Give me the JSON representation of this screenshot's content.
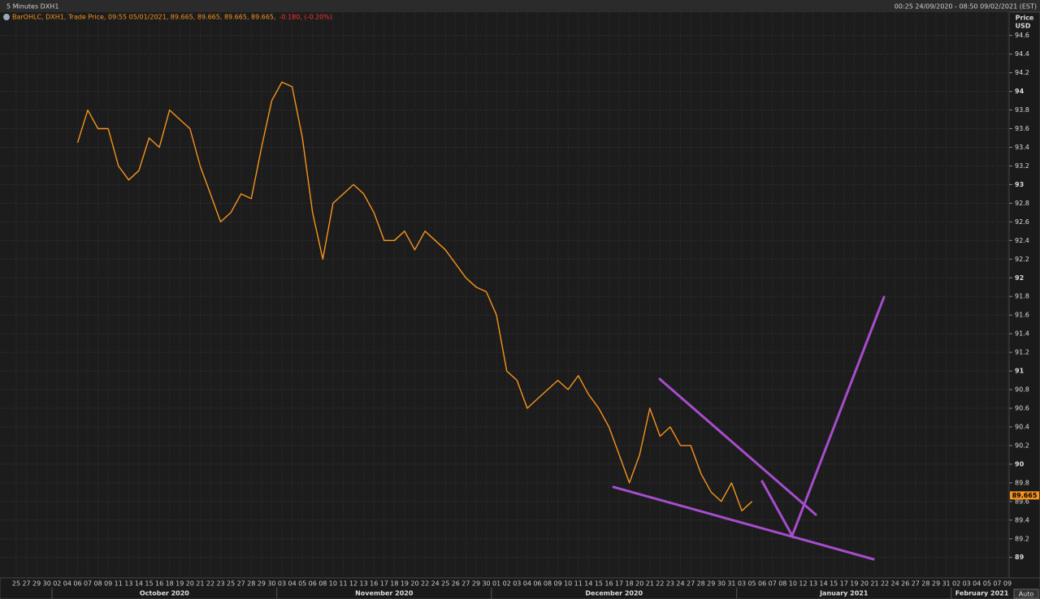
{
  "chart_data": {
    "type": "line",
    "header_left": "5 Minutes DXH1",
    "header_right": "00:25 24/09/2020 - 08:50 09/02/2021 (EST)",
    "legend_text": "BarOHLC, DXH1, Trade Price, 09:55 05/01/2021, 89.665, 89.665, 89.665, 89.665,",
    "legend_change": "-0.180, (-0.20%)",
    "axis_title": "Price",
    "axis_unit": "USD",
    "auto_button": "Auto",
    "periods": [
      {
        "label": null,
        "days": [
          "25",
          "27",
          "29",
          "30"
        ]
      },
      {
        "label": "October 2020",
        "days": [
          "02",
          "04",
          "06",
          "07",
          "08",
          "09",
          "11",
          "13",
          "14",
          "15",
          "16",
          "18",
          "19",
          "20",
          "21",
          "22",
          "23",
          "25",
          "27",
          "28",
          "29",
          "30"
        ]
      },
      {
        "label": "November 2020",
        "days": [
          "03",
          "04",
          "05",
          "06",
          "08",
          "10",
          "11",
          "12",
          "13",
          "16",
          "17",
          "18",
          "19",
          "20",
          "22",
          "24",
          "25",
          "26",
          "27",
          "29",
          "30"
        ]
      },
      {
        "label": "December 2020",
        "days": [
          "01",
          "02",
          "03",
          "04",
          "06",
          "08",
          "09",
          "10",
          "11",
          "14",
          "15",
          "16",
          "17",
          "18",
          "20",
          "21",
          "22",
          "23",
          "24",
          "27",
          "28",
          "29",
          "30",
          "31"
        ]
      },
      {
        "label": "January 2021",
        "days": [
          "03",
          "05",
          "06",
          "07",
          "08",
          "10",
          "12",
          "13",
          "14",
          "15",
          "17",
          "19",
          "20",
          "21",
          "22",
          "24",
          "26",
          "27",
          "28",
          "29",
          "31"
        ]
      },
      {
        "label": "February 2021",
        "days": [
          "02",
          "03",
          "04",
          "05",
          "07",
          "09"
        ]
      }
    ],
    "series": [
      {
        "name": "DXH1",
        "color": "#f7941d",
        "values": [
          null,
          null,
          null,
          null,
          null,
          null,
          93.45,
          93.8,
          93.6,
          93.6,
          93.2,
          93.05,
          93.15,
          93.5,
          93.4,
          93.8,
          93.7,
          93.6,
          93.2,
          92.9,
          92.6,
          92.7,
          92.9,
          92.85,
          93.4,
          93.9,
          94.1,
          94.05,
          93.5,
          92.7,
          92.2,
          92.8,
          92.9,
          93.0,
          92.9,
          92.7,
          92.4,
          92.4,
          92.5,
          92.3,
          92.5,
          92.4,
          92.3,
          92.15,
          92.0,
          91.9,
          91.85,
          91.6,
          91.0,
          90.9,
          90.6,
          90.7,
          90.8,
          90.9,
          90.8,
          90.95,
          90.75,
          90.6,
          90.4,
          90.1,
          89.8,
          90.1,
          90.6,
          90.3,
          90.4,
          90.2,
          90.2,
          89.9,
          89.7,
          89.6,
          89.8,
          89.5,
          89.6,
          null,
          null,
          null,
          null,
          null,
          null,
          null,
          null,
          null,
          null,
          null,
          null,
          null,
          null,
          null,
          null,
          null,
          null,
          null,
          null,
          null,
          null,
          null,
          null,
          null
        ]
      }
    ],
    "last_price": 89.665,
    "ylim": [
      88.78,
      94.85
    ],
    "yticks": [
      89,
      89.2,
      89.4,
      89.6,
      89.8,
      90,
      90.2,
      90.4,
      90.6,
      90.8,
      91,
      91.2,
      91.4,
      91.6,
      91.8,
      92,
      92.2,
      92.4,
      92.6,
      92.8,
      93,
      93.2,
      93.4,
      93.6,
      93.8,
      94,
      94.2,
      94.4,
      94.6
    ],
    "grid": true
  }
}
